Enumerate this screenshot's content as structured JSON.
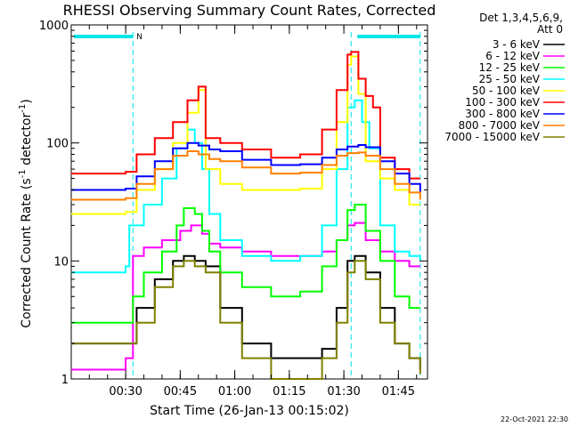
{
  "chart_data": {
    "type": "line",
    "title": "RHESSI Observing Summary Count Rates, Corrected",
    "ylabel": "Corrected Count Rate (s⁻¹ detector⁻¹)",
    "ylabel_main": "Corrected Count Rate (s",
    "ylabel_unit": "detector",
    "ylabel_exp": "-1",
    "ylabel_close": ")",
    "xlabel": "Start Time (26-Jan-13 00:15:02)",
    "yscale": "log",
    "ylim": [
      1,
      1000
    ],
    "xlim_minutes": [
      15.03,
      113
    ],
    "x_ticks": [
      {
        "minutes": 30,
        "label": "00:30"
      },
      {
        "minutes": 45,
        "label": "00:45"
      },
      {
        "minutes": 60,
        "label": "01:00"
      },
      {
        "minutes": 75,
        "label": "01:15"
      },
      {
        "minutes": 90,
        "label": "01:30"
      },
      {
        "minutes": 105,
        "label": "01:45"
      }
    ],
    "y_ticks": [
      {
        "value": 1,
        "label": "1"
      },
      {
        "value": 10,
        "label": "10"
      },
      {
        "value": 100,
        "label": "100"
      },
      {
        "value": 1000,
        "label": "1000"
      }
    ],
    "legend_title": "Det 1,3,4,5,6,9,",
    "legend_subtitle": "Att 0",
    "legend_position": "right, outside plot",
    "night_label": "N",
    "night_intervals_minutes": [
      [
        15.03,
        32
      ],
      [
        93,
        111
      ]
    ],
    "saa_marker_minutes": [
      32,
      92,
      111
    ],
    "series": [
      {
        "name": "3 - 6 keV",
        "color": "#000000",
        "x": [
          15,
          22,
          30,
          33,
          38,
          43,
          46,
          49,
          52,
          56,
          62,
          70,
          78,
          84,
          88,
          91,
          93,
          96,
          100,
          104,
          108,
          111
        ],
        "y": [
          2,
          2,
          2,
          4,
          7,
          10,
          11,
          10,
          9,
          4,
          2,
          1.5,
          1.5,
          1.8,
          4,
          10,
          11,
          8,
          4,
          2,
          1.5,
          1.2
        ]
      },
      {
        "name": "6 - 12 keV",
        "color": "#ff00ff",
        "x": [
          15,
          22,
          30,
          32,
          35,
          40,
          45,
          48,
          51,
          53,
          56,
          62,
          70,
          78,
          84,
          88,
          91,
          93,
          96,
          100,
          104,
          108,
          111
        ],
        "y": [
          1.2,
          1.2,
          1.5,
          11,
          13,
          15,
          18,
          20,
          17,
          14,
          13,
          12,
          11,
          11,
          12,
          15,
          20,
          21,
          15,
          12,
          10,
          9,
          9
        ]
      },
      {
        "name": "12 - 25 keV",
        "color": "#00ff00",
        "x": [
          15,
          22,
          30,
          32,
          35,
          40,
          44,
          46,
          49,
          51,
          53,
          56,
          62,
          70,
          78,
          84,
          88,
          91,
          93,
          96,
          100,
          104,
          108,
          111
        ],
        "y": [
          3,
          3,
          3,
          5,
          8,
          12,
          20,
          28,
          25,
          18,
          12,
          8,
          6,
          5,
          5.5,
          9,
          15,
          27,
          30,
          18,
          10,
          5,
          4,
          4
        ]
      },
      {
        "name": "25 - 50 keV",
        "color": "#00ffff",
        "x": [
          15,
          22,
          30,
          31,
          35,
          40,
          44,
          47,
          49,
          51,
          53,
          56,
          62,
          70,
          78,
          84,
          88,
          91,
          93,
          95,
          97,
          100,
          104,
          108,
          111
        ],
        "y": [
          8,
          8,
          9,
          20,
          30,
          50,
          90,
          130,
          100,
          60,
          25,
          15,
          11,
          10,
          11,
          20,
          60,
          200,
          230,
          150,
          90,
          20,
          12,
          11,
          10
        ]
      },
      {
        "name": "50 - 100 keV",
        "color": "#ffff00",
        "x": [
          15,
          22,
          30,
          33,
          38,
          43,
          47,
          50,
          52,
          56,
          62,
          70,
          78,
          84,
          88,
          91,
          92,
          94,
          96,
          100,
          104,
          108,
          111
        ],
        "y": [
          25,
          25,
          26,
          40,
          60,
          100,
          180,
          280,
          60,
          45,
          40,
          40,
          41,
          60,
          150,
          460,
          540,
          260,
          70,
          50,
          40,
          30,
          30
        ]
      },
      {
        "name": "100 - 300 keV",
        "color": "#ff0000",
        "x": [
          15,
          22,
          30,
          33,
          38,
          43,
          47,
          50,
          52,
          56,
          62,
          70,
          78,
          84,
          88,
          91,
          92,
          94,
          96,
          98,
          100,
          104,
          108,
          111
        ],
        "y": [
          55,
          55,
          57,
          80,
          110,
          150,
          230,
          300,
          110,
          100,
          88,
          75,
          80,
          130,
          280,
          560,
          590,
          350,
          250,
          200,
          75,
          60,
          50,
          50
        ]
      },
      {
        "name": "300 - 800 keV",
        "color": "#0000ff",
        "x": [
          15,
          22,
          30,
          33,
          38,
          43,
          47,
          50,
          53,
          56,
          62,
          70,
          78,
          84,
          88,
          91,
          94,
          96,
          100,
          104,
          108,
          111
        ],
        "y": [
          40,
          40,
          41,
          52,
          70,
          90,
          100,
          95,
          88,
          85,
          72,
          65,
          66,
          75,
          88,
          93,
          96,
          92,
          70,
          55,
          45,
          38
        ]
      },
      {
        "name": "800 - 7000 keV",
        "color": "#ff8000",
        "x": [
          15,
          22,
          30,
          33,
          38,
          43,
          47,
          50,
          53,
          56,
          62,
          70,
          78,
          84,
          88,
          91,
          94,
          96,
          100,
          104,
          108,
          111
        ],
        "y": [
          33,
          33,
          34,
          45,
          60,
          78,
          85,
          80,
          73,
          70,
          62,
          55,
          56,
          65,
          78,
          82,
          83,
          78,
          60,
          45,
          38,
          33
        ]
      },
      {
        "name": "7000 - 15000 keV",
        "color": "#808000",
        "x": [
          15,
          22,
          30,
          33,
          38,
          43,
          46,
          49,
          52,
          56,
          62,
          70,
          78,
          84,
          88,
          91,
          93,
          96,
          100,
          104,
          108,
          111
        ],
        "y": [
          2,
          2,
          2,
          3,
          6,
          9,
          10,
          9,
          8,
          3,
          1.5,
          1,
          1,
          1.5,
          3,
          8,
          10,
          7,
          3,
          2,
          1.5,
          1.1
        ]
      }
    ],
    "timestamp": "22-Oct-2021 22:30",
    "grid": false
  }
}
